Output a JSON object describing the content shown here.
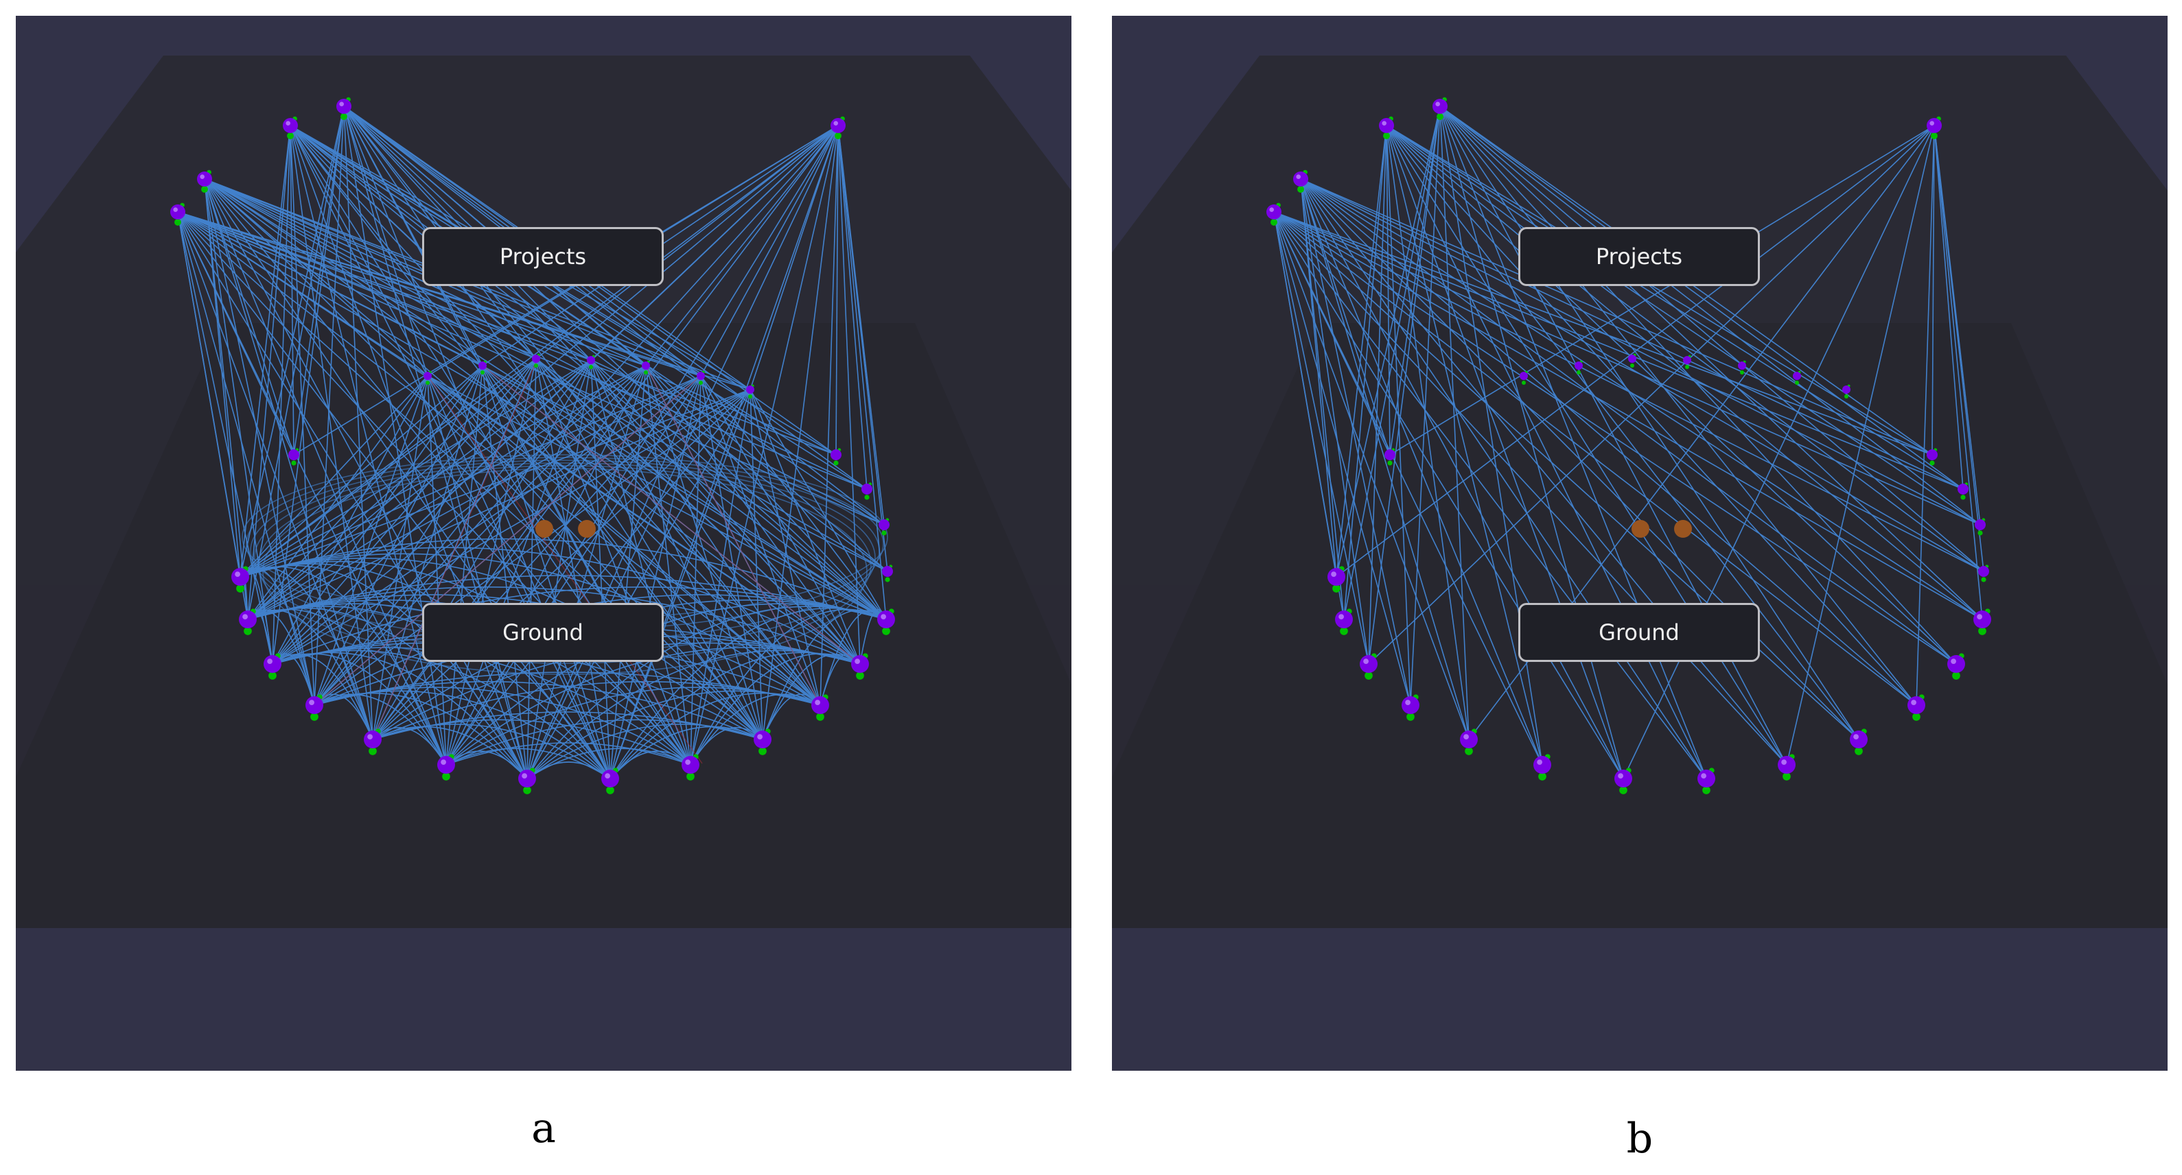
{
  "panels": [
    {
      "id": "a",
      "caption": "a",
      "labels": {
        "top": "Projects",
        "bottom": "Ground"
      },
      "edge_color": "#4a9eff",
      "accent_edge_color": "#c0303a",
      "node_color": "#7a00e6",
      "node_tip_color": "#00c000",
      "center_node_color": "#9a5520",
      "dense_ring": true
    },
    {
      "id": "b",
      "caption": "b",
      "labels": {
        "top": "Projects",
        "bottom": "Ground"
      },
      "edge_color": "#4a9eff",
      "accent_edge_color": "",
      "node_color": "#7a00e6",
      "node_tip_color": "#00c000",
      "center_node_color": "#9a5520",
      "dense_ring": false
    }
  ],
  "colors": {
    "background": "#323248",
    "platform_top": "#2a2a34",
    "platform_inner": "#26262e",
    "label_bg": "#1f2027",
    "label_border": "#bfbfc4"
  }
}
